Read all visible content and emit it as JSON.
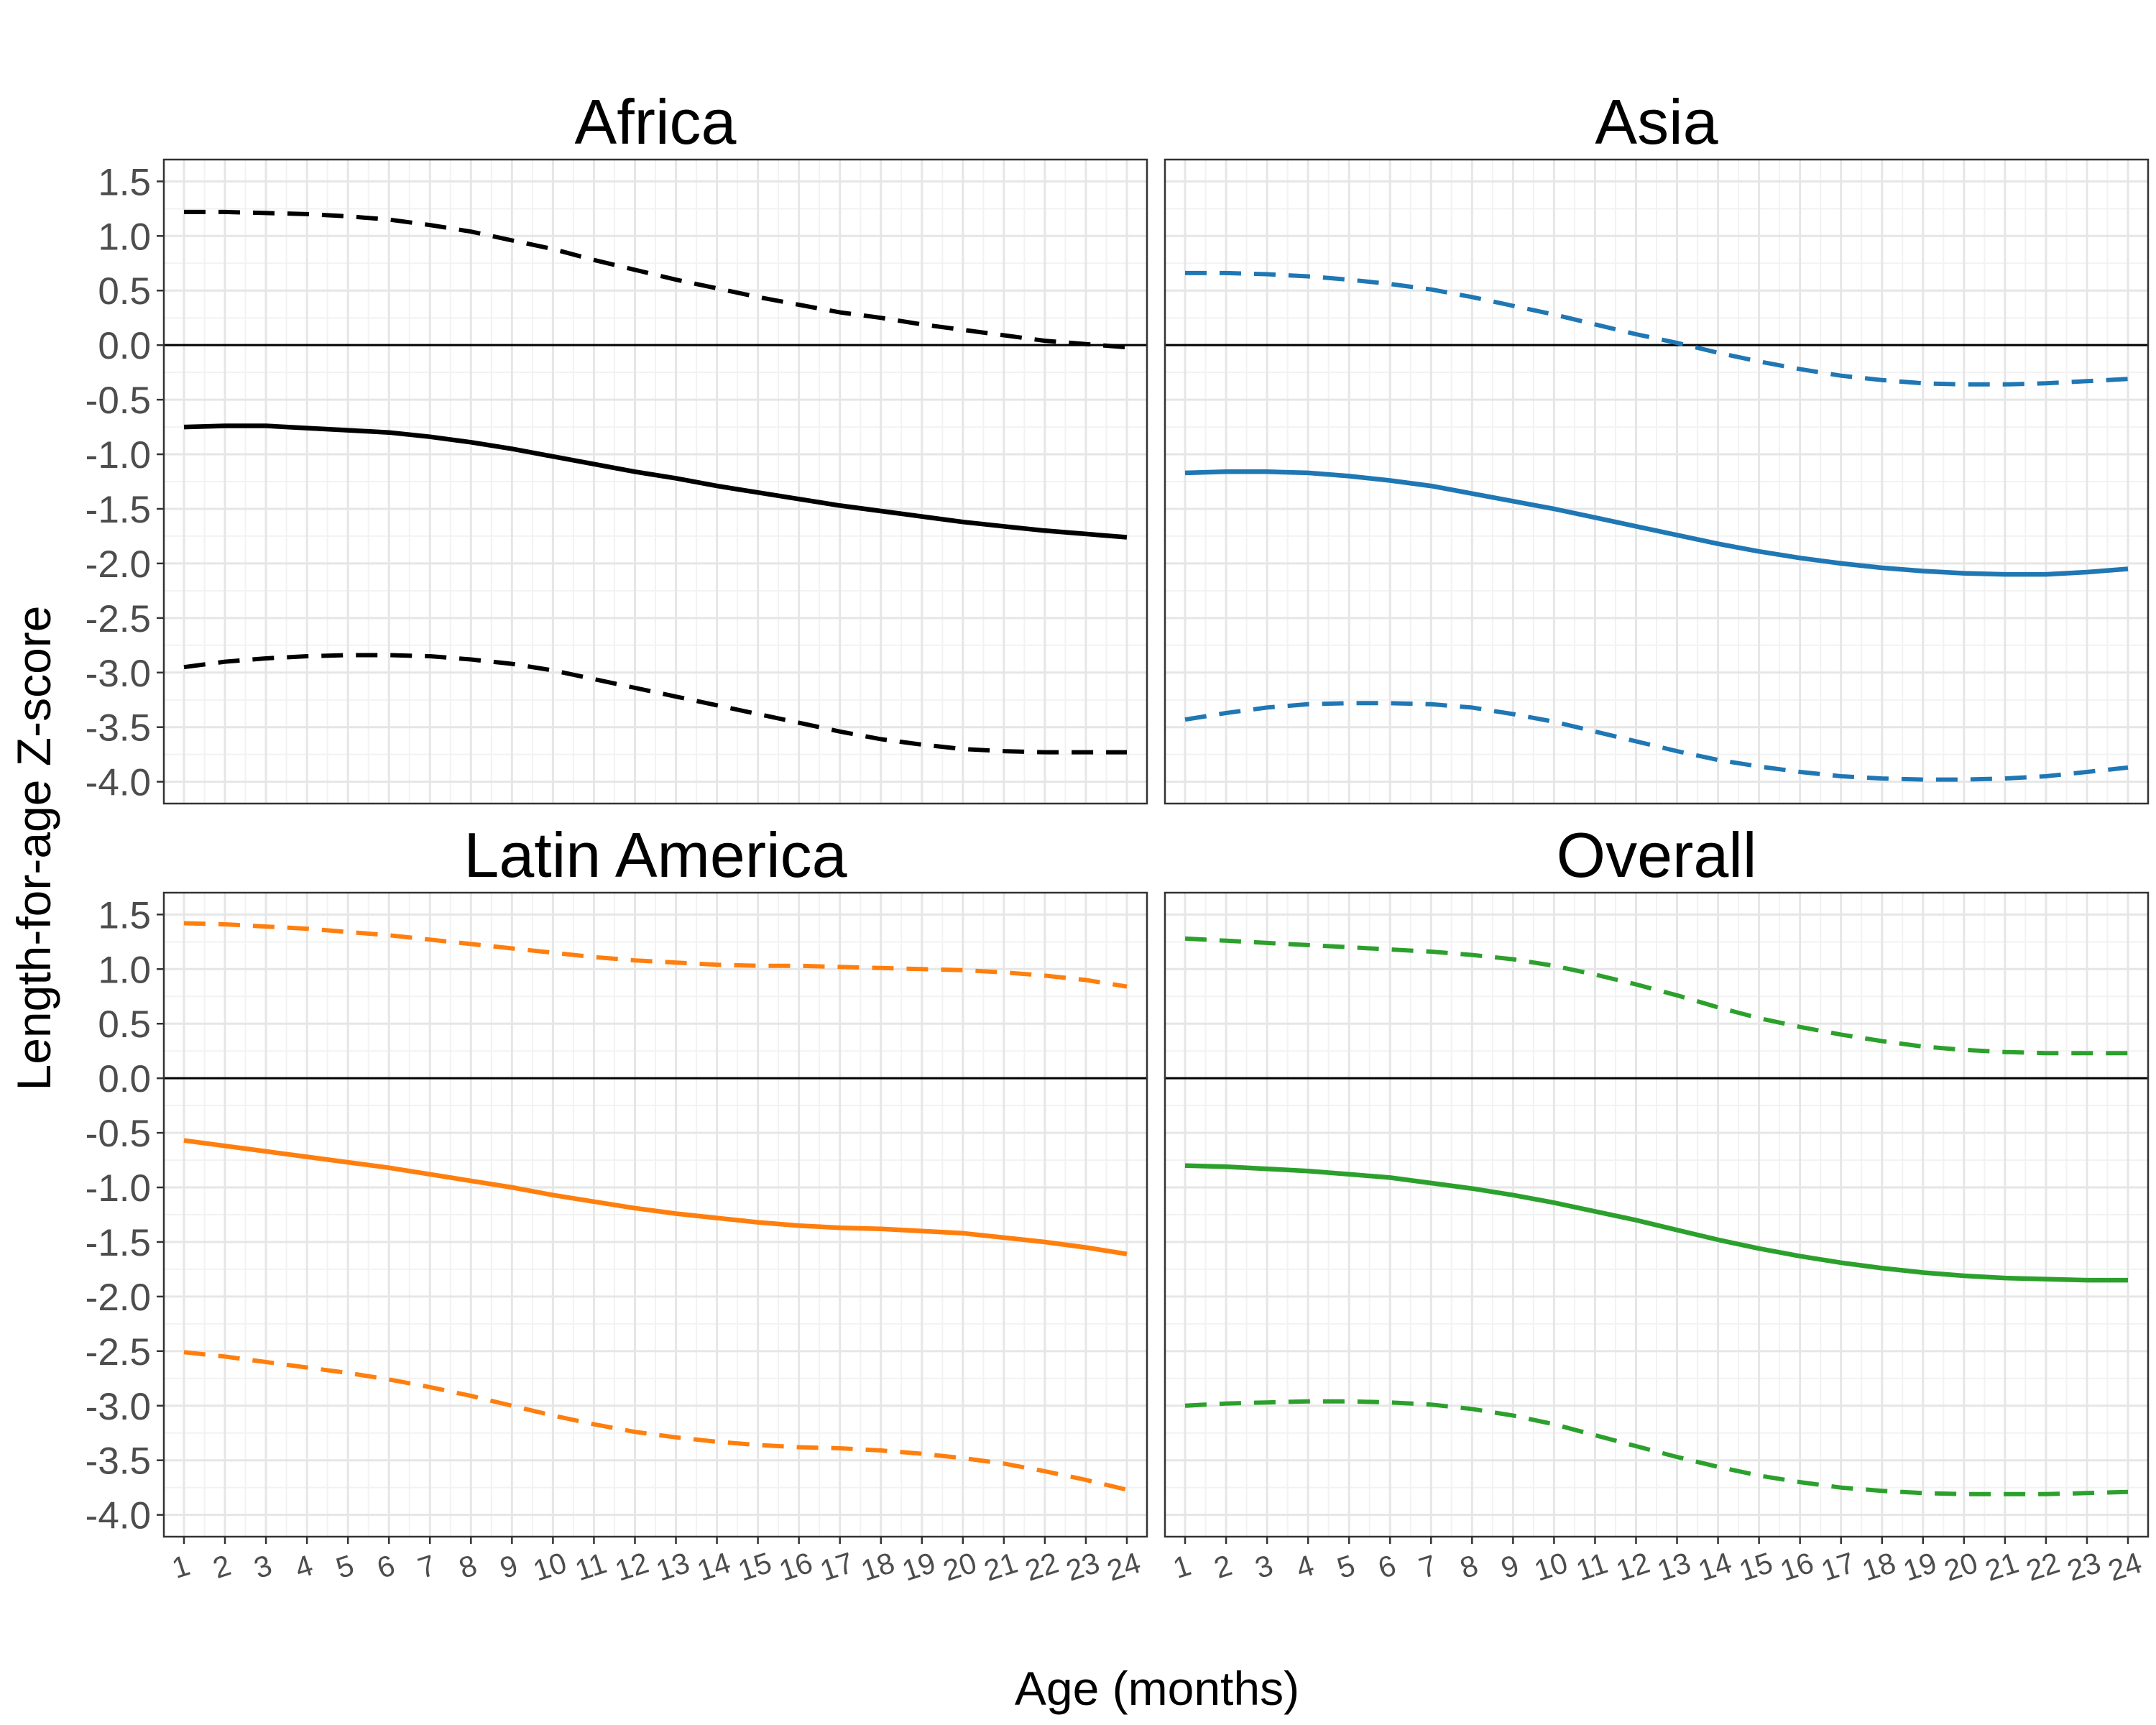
{
  "chart_data": {
    "type": "line",
    "xlabel": "Age (months)",
    "ylabel": "Length-for-age Z-score",
    "x": [
      1,
      2,
      3,
      4,
      5,
      6,
      7,
      8,
      9,
      10,
      11,
      12,
      13,
      14,
      15,
      16,
      17,
      18,
      19,
      20,
      21,
      22,
      23,
      24
    ],
    "xlim": [
      1,
      24
    ],
    "ylim": [
      -4.2,
      1.7
    ],
    "yticks": [
      "1.5",
      "1.0",
      "0.5",
      "0.0",
      "-0.5",
      "-1.0",
      "-1.5",
      "-2.0",
      "-2.5",
      "-3.0",
      "-3.5",
      "-4.0"
    ],
    "ytick_values": [
      1.5,
      1.0,
      0.5,
      0.0,
      -0.5,
      -1.0,
      -1.5,
      -2.0,
      -2.5,
      -3.0,
      -3.5,
      -4.0
    ],
    "xticks": [
      "1",
      "2",
      "3",
      "4",
      "5",
      "6",
      "7",
      "8",
      "9",
      "10",
      "11",
      "12",
      "13",
      "14",
      "15",
      "16",
      "17",
      "18",
      "19",
      "20",
      "21",
      "22",
      "23",
      "24"
    ],
    "grid": true,
    "reference_line_y": 0,
    "panels": [
      {
        "title": "Africa",
        "color": "#000000",
        "median": [
          -0.75,
          -0.74,
          -0.74,
          -0.76,
          -0.78,
          -0.8,
          -0.84,
          -0.89,
          -0.95,
          -1.02,
          -1.09,
          -1.16,
          -1.22,
          -1.29,
          -1.35,
          -1.41,
          -1.47,
          -1.52,
          -1.57,
          -1.62,
          -1.66,
          -1.7,
          -1.73,
          -1.76
        ],
        "upper": [
          1.22,
          1.22,
          1.21,
          1.2,
          1.18,
          1.15,
          1.1,
          1.04,
          0.96,
          0.88,
          0.78,
          0.69,
          0.6,
          0.52,
          0.44,
          0.37,
          0.3,
          0.25,
          0.19,
          0.14,
          0.09,
          0.04,
          0.01,
          -0.02
        ],
        "lower": [
          -2.95,
          -2.9,
          -2.87,
          -2.85,
          -2.84,
          -2.84,
          -2.85,
          -2.88,
          -2.92,
          -2.98,
          -3.06,
          -3.14,
          -3.22,
          -3.3,
          -3.38,
          -3.46,
          -3.54,
          -3.61,
          -3.66,
          -3.7,
          -3.72,
          -3.73,
          -3.73,
          -3.73
        ]
      },
      {
        "title": "Asia",
        "color": "#1f77b4",
        "median": [
          -1.17,
          -1.16,
          -1.16,
          -1.17,
          -1.2,
          -1.24,
          -1.29,
          -1.36,
          -1.43,
          -1.5,
          -1.58,
          -1.66,
          -1.74,
          -1.82,
          -1.89,
          -1.95,
          -2.0,
          -2.04,
          -2.07,
          -2.09,
          -2.1,
          -2.1,
          -2.08,
          -2.05
        ],
        "upper": [
          0.66,
          0.66,
          0.65,
          0.63,
          0.6,
          0.56,
          0.51,
          0.44,
          0.36,
          0.28,
          0.19,
          0.1,
          0.02,
          -0.07,
          -0.15,
          -0.22,
          -0.28,
          -0.32,
          -0.35,
          -0.36,
          -0.36,
          -0.35,
          -0.33,
          -0.31
        ],
        "lower": [
          -3.43,
          -3.37,
          -3.32,
          -3.29,
          -3.28,
          -3.28,
          -3.29,
          -3.32,
          -3.38,
          -3.45,
          -3.54,
          -3.63,
          -3.72,
          -3.8,
          -3.86,
          -3.91,
          -3.95,
          -3.97,
          -3.98,
          -3.98,
          -3.97,
          -3.95,
          -3.91,
          -3.87
        ]
      },
      {
        "title": "Latin America",
        "color": "#ff7f0e",
        "median": [
          -0.57,
          -0.62,
          -0.67,
          -0.72,
          -0.77,
          -0.82,
          -0.88,
          -0.94,
          -1.0,
          -1.07,
          -1.13,
          -1.19,
          -1.24,
          -1.28,
          -1.32,
          -1.35,
          -1.37,
          -1.38,
          -1.4,
          -1.42,
          -1.46,
          -1.5,
          -1.55,
          -1.61
        ],
        "upper": [
          1.42,
          1.41,
          1.39,
          1.37,
          1.34,
          1.31,
          1.27,
          1.23,
          1.19,
          1.15,
          1.11,
          1.08,
          1.06,
          1.04,
          1.03,
          1.03,
          1.02,
          1.01,
          1.0,
          0.99,
          0.97,
          0.94,
          0.9,
          0.84
        ],
        "lower": [
          -2.51,
          -2.55,
          -2.6,
          -2.65,
          -2.7,
          -2.76,
          -2.83,
          -2.91,
          -3.0,
          -3.09,
          -3.17,
          -3.24,
          -3.29,
          -3.33,
          -3.36,
          -3.38,
          -3.39,
          -3.41,
          -3.44,
          -3.48,
          -3.53,
          -3.6,
          -3.68,
          -3.77
        ]
      },
      {
        "title": "Overall",
        "color": "#2ca02c",
        "median": [
          -0.8,
          -0.81,
          -0.83,
          -0.85,
          -0.88,
          -0.91,
          -0.96,
          -1.01,
          -1.07,
          -1.14,
          -1.22,
          -1.3,
          -1.39,
          -1.48,
          -1.56,
          -1.63,
          -1.69,
          -1.74,
          -1.78,
          -1.81,
          -1.83,
          -1.84,
          -1.85,
          -1.85
        ],
        "upper": [
          1.28,
          1.26,
          1.24,
          1.22,
          1.2,
          1.18,
          1.16,
          1.13,
          1.09,
          1.03,
          0.95,
          0.86,
          0.76,
          0.65,
          0.55,
          0.47,
          0.4,
          0.34,
          0.29,
          0.26,
          0.24,
          0.23,
          0.23,
          0.23
        ],
        "lower": [
          -3.0,
          -2.98,
          -2.97,
          -2.96,
          -2.96,
          -2.97,
          -2.99,
          -3.03,
          -3.09,
          -3.17,
          -3.27,
          -3.37,
          -3.47,
          -3.56,
          -3.64,
          -3.7,
          -3.75,
          -3.78,
          -3.8,
          -3.81,
          -3.81,
          -3.81,
          -3.8,
          -3.79
        ]
      }
    ]
  }
}
